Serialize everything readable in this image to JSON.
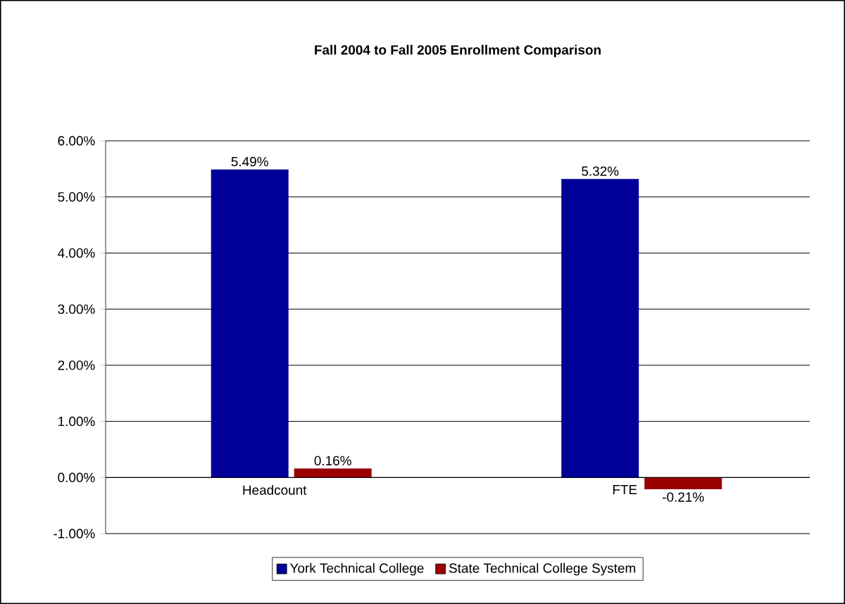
{
  "chart_data": {
    "type": "bar",
    "title": "Fall 2004 to Fall 2005  Enrollment Comparison",
    "categories": [
      "Headcount",
      "FTE"
    ],
    "series": [
      {
        "name": "York Technical College",
        "color": "#000099",
        "values": [
          5.49,
          5.32
        ],
        "value_labels": [
          "5.49%",
          "5.32%"
        ]
      },
      {
        "name": "State Technical College System",
        "color": "#990000",
        "values": [
          0.16,
          -0.21
        ],
        "value_labels": [
          "0.16%",
          "-0.21%"
        ]
      }
    ],
    "ylim": [
      -1,
      6
    ],
    "yticks": [
      {
        "value": -1,
        "label": "-1.00%"
      },
      {
        "value": 0,
        "label": "0.00%"
      },
      {
        "value": 1,
        "label": "1.00%"
      },
      {
        "value": 2,
        "label": "2.00%"
      },
      {
        "value": 3,
        "label": "3.00%"
      },
      {
        "value": 4,
        "label": "4.00%"
      },
      {
        "value": 5,
        "label": "5.00%"
      },
      {
        "value": 6,
        "label": "6.00%"
      }
    ],
    "grid": "y",
    "legend": "bottom"
  }
}
